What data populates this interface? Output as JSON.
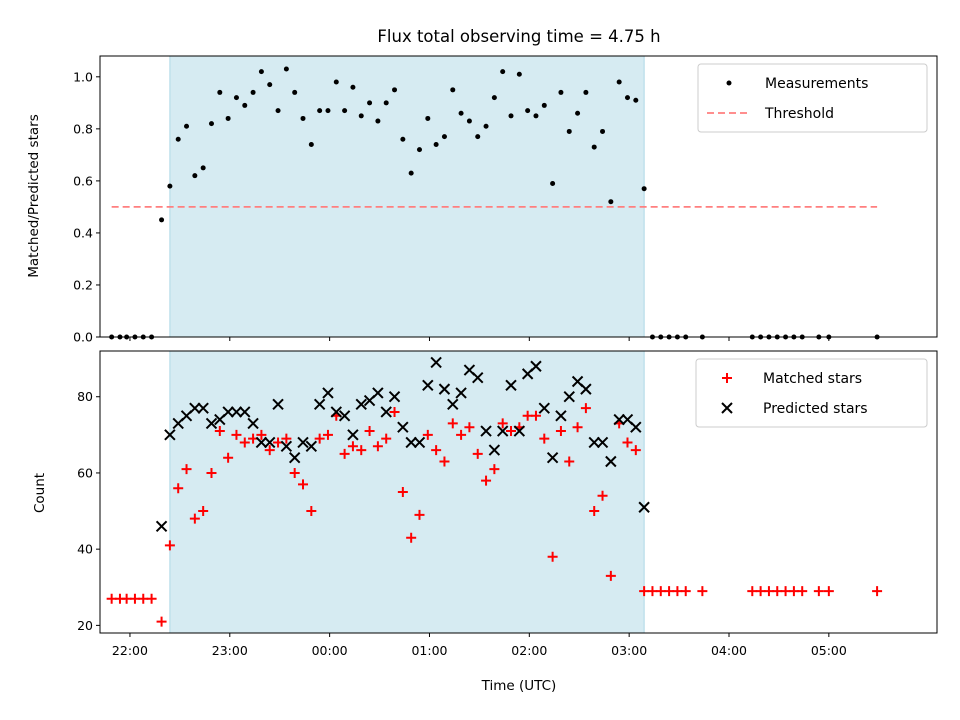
{
  "chart_data": {
    "title": "Flux total observing time = 4.75 h",
    "xlabel": "Time (UTC)",
    "x_ticks": [
      "22:00",
      "23:00",
      "00:00",
      "01:00",
      "02:00",
      "03:00",
      "04:00",
      "05:00"
    ],
    "x_range": [
      "21:42",
      "06:05"
    ],
    "shaded_window": [
      "22:24",
      "03:09"
    ],
    "shade_color": "#add8e6",
    "panels": [
      {
        "type": "scatter",
        "ylabel": "Matched/Predicted stars",
        "ylim": [
          0,
          1.08
        ],
        "y_ticks": [
          "0.0",
          "0.2",
          "0.4",
          "0.6",
          "0.8",
          "1.0"
        ],
        "legend_position": "upper right",
        "series": [
          {
            "name": "Measurements",
            "marker": "dot",
            "color": "#000000",
            "points": [
              [
                "21:49",
                0.0
              ],
              [
                "21:54",
                0.0
              ],
              [
                "21:58",
                0.0
              ],
              [
                "22:03",
                0.0
              ],
              [
                "22:08",
                0.0
              ],
              [
                "22:13",
                0.0
              ],
              [
                "22:19",
                0.45
              ],
              [
                "22:24",
                0.58
              ],
              [
                "22:29",
                0.76
              ],
              [
                "22:34",
                0.81
              ],
              [
                "22:39",
                0.62
              ],
              [
                "22:44",
                0.65
              ],
              [
                "22:49",
                0.82
              ],
              [
                "22:54",
                0.94
              ],
              [
                "22:59",
                0.84
              ],
              [
                "23:04",
                0.92
              ],
              [
                "23:09",
                0.89
              ],
              [
                "23:14",
                0.94
              ],
              [
                "23:19",
                1.02
              ],
              [
                "23:24",
                0.97
              ],
              [
                "23:29",
                0.87
              ],
              [
                "23:34",
                1.03
              ],
              [
                "23:39",
                0.94
              ],
              [
                "23:44",
                0.84
              ],
              [
                "23:49",
                0.74
              ],
              [
                "23:54",
                0.87
              ],
              [
                "23:59",
                0.87
              ],
              [
                "00:04",
                0.98
              ],
              [
                "00:09",
                0.87
              ],
              [
                "00:14",
                0.96
              ],
              [
                "00:19",
                0.85
              ],
              [
                "00:24",
                0.9
              ],
              [
                "00:29",
                0.83
              ],
              [
                "00:34",
                0.9
              ],
              [
                "00:39",
                0.95
              ],
              [
                "00:44",
                0.76
              ],
              [
                "00:49",
                0.63
              ],
              [
                "00:54",
                0.72
              ],
              [
                "00:59",
                0.84
              ],
              [
                "01:04",
                0.74
              ],
              [
                "01:09",
                0.77
              ],
              [
                "01:14",
                0.95
              ],
              [
                "01:19",
                0.86
              ],
              [
                "01:24",
                0.83
              ],
              [
                "01:29",
                0.77
              ],
              [
                "01:34",
                0.81
              ],
              [
                "01:39",
                0.92
              ],
              [
                "01:44",
                1.02
              ],
              [
                "01:49",
                0.85
              ],
              [
                "01:54",
                1.01
              ],
              [
                "01:59",
                0.87
              ],
              [
                "02:04",
                0.85
              ],
              [
                "02:09",
                0.89
              ],
              [
                "02:14",
                0.59
              ],
              [
                "02:19",
                0.94
              ],
              [
                "02:24",
                0.79
              ],
              [
                "02:29",
                0.86
              ],
              [
                "02:34",
                0.94
              ],
              [
                "02:39",
                0.73
              ],
              [
                "02:44",
                0.79
              ],
              [
                "02:49",
                0.52
              ],
              [
                "02:54",
                0.98
              ],
              [
                "02:59",
                0.92
              ],
              [
                "03:04",
                0.91
              ],
              [
                "03:09",
                0.57
              ],
              [
                "03:14",
                0.0
              ],
              [
                "03:19",
                0.0
              ],
              [
                "03:24",
                0.0
              ],
              [
                "03:29",
                0.0
              ],
              [
                "03:34",
                0.0
              ],
              [
                "03:44",
                0.0
              ],
              [
                "04:14",
                0.0
              ],
              [
                "04:19",
                0.0
              ],
              [
                "04:24",
                0.0
              ],
              [
                "04:29",
                0.0
              ],
              [
                "04:34",
                0.0
              ],
              [
                "04:39",
                0.0
              ],
              [
                "04:44",
                0.0
              ],
              [
                "04:54",
                0.0
              ],
              [
                "05:00",
                0.0
              ],
              [
                "05:29",
                0.0
              ]
            ]
          },
          {
            "name": "Threshold",
            "type": "line",
            "style": "dashed",
            "color": "#ff7f7f",
            "points": [
              [
                "21:49",
                0.5
              ],
              [
                "05:29",
                0.5
              ]
            ]
          }
        ]
      },
      {
        "type": "scatter",
        "ylabel": "Count",
        "ylim": [
          18,
          92
        ],
        "y_ticks": [
          "20",
          "40",
          "60",
          "80"
        ],
        "legend_position": "upper right",
        "series": [
          {
            "name": "Matched stars",
            "marker": "plus",
            "color": "#ff0000",
            "points": [
              [
                "21:49",
                27
              ],
              [
                "21:54",
                27
              ],
              [
                "21:58",
                27
              ],
              [
                "22:03",
                27
              ],
              [
                "22:08",
                27
              ],
              [
                "22:13",
                27
              ],
              [
                "22:19",
                21
              ],
              [
                "22:24",
                41
              ],
              [
                "22:29",
                56
              ],
              [
                "22:34",
                61
              ],
              [
                "22:39",
                48
              ],
              [
                "22:44",
                50
              ],
              [
                "22:49",
                60
              ],
              [
                "22:54",
                71
              ],
              [
                "22:59",
                64
              ],
              [
                "23:04",
                70
              ],
              [
                "23:09",
                68
              ],
              [
                "23:14",
                69
              ],
              [
                "23:19",
                70
              ],
              [
                "23:24",
                66
              ],
              [
                "23:29",
                68
              ],
              [
                "23:34",
                69
              ],
              [
                "23:39",
                60
              ],
              [
                "23:44",
                57
              ],
              [
                "23:49",
                50
              ],
              [
                "23:54",
                69
              ],
              [
                "23:59",
                70
              ],
              [
                "00:04",
                75
              ],
              [
                "00:09",
                65
              ],
              [
                "00:14",
                67
              ],
              [
                "00:19",
                66
              ],
              [
                "00:24",
                71
              ],
              [
                "00:29",
                67
              ],
              [
                "00:34",
                69
              ],
              [
                "00:39",
                76
              ],
              [
                "00:44",
                55
              ],
              [
                "00:49",
                43
              ],
              [
                "00:54",
                49
              ],
              [
                "00:59",
                70
              ],
              [
                "01:04",
                66
              ],
              [
                "01:09",
                63
              ],
              [
                "01:14",
                73
              ],
              [
                "01:19",
                70
              ],
              [
                "01:24",
                72
              ],
              [
                "01:29",
                65
              ],
              [
                "01:34",
                58
              ],
              [
                "01:39",
                61
              ],
              [
                "01:44",
                73
              ],
              [
                "01:49",
                71
              ],
              [
                "01:54",
                72
              ],
              [
                "01:59",
                75
              ],
              [
                "02:04",
                75
              ],
              [
                "02:09",
                69
              ],
              [
                "02:14",
                38
              ],
              [
                "02:19",
                71
              ],
              [
                "02:24",
                63
              ],
              [
                "02:29",
                72
              ],
              [
                "02:34",
                77
              ],
              [
                "02:39",
                50
              ],
              [
                "02:44",
                54
              ],
              [
                "02:49",
                33
              ],
              [
                "02:54",
                73
              ],
              [
                "02:59",
                68
              ],
              [
                "03:04",
                66
              ],
              [
                "03:09",
                29
              ],
              [
                "03:14",
                29
              ],
              [
                "03:19",
                29
              ],
              [
                "03:24",
                29
              ],
              [
                "03:29",
                29
              ],
              [
                "03:34",
                29
              ],
              [
                "03:44",
                29
              ],
              [
                "04:14",
                29
              ],
              [
                "04:19",
                29
              ],
              [
                "04:24",
                29
              ],
              [
                "04:29",
                29
              ],
              [
                "04:34",
                29
              ],
              [
                "04:39",
                29
              ],
              [
                "04:44",
                29
              ],
              [
                "04:54",
                29
              ],
              [
                "05:00",
                29
              ],
              [
                "05:29",
                29
              ]
            ]
          },
          {
            "name": "Predicted stars",
            "marker": "x",
            "color": "#000000",
            "points": [
              [
                "22:19",
                46
              ],
              [
                "22:24",
                70
              ],
              [
                "22:29",
                73
              ],
              [
                "22:34",
                75
              ],
              [
                "22:39",
                77
              ],
              [
                "22:44",
                77
              ],
              [
                "22:49",
                73
              ],
              [
                "22:54",
                74
              ],
              [
                "22:59",
                76
              ],
              [
                "23:04",
                76
              ],
              [
                "23:09",
                76
              ],
              [
                "23:14",
                73
              ],
              [
                "23:19",
                68
              ],
              [
                "23:24",
                68
              ],
              [
                "23:29",
                78
              ],
              [
                "23:34",
                67
              ],
              [
                "23:39",
                64
              ],
              [
                "23:44",
                68
              ],
              [
                "23:49",
                67
              ],
              [
                "23:54",
                78
              ],
              [
                "23:59",
                81
              ],
              [
                "00:04",
                76
              ],
              [
                "00:09",
                75
              ],
              [
                "00:14",
                70
              ],
              [
                "00:19",
                78
              ],
              [
                "00:24",
                79
              ],
              [
                "00:29",
                81
              ],
              [
                "00:34",
                76
              ],
              [
                "00:39",
                80
              ],
              [
                "00:44",
                72
              ],
              [
                "00:49",
                68
              ],
              [
                "00:54",
                68
              ],
              [
                "00:59",
                83
              ],
              [
                "01:04",
                89
              ],
              [
                "01:09",
                82
              ],
              [
                "01:14",
                78
              ],
              [
                "01:19",
                81
              ],
              [
                "01:24",
                87
              ],
              [
                "01:29",
                85
              ],
              [
                "01:34",
                71
              ],
              [
                "01:39",
                66
              ],
              [
                "01:44",
                71
              ],
              [
                "01:49",
                83
              ],
              [
                "01:54",
                71
              ],
              [
                "01:59",
                86
              ],
              [
                "02:04",
                88
              ],
              [
                "02:09",
                77
              ],
              [
                "02:14",
                64
              ],
              [
                "02:19",
                75
              ],
              [
                "02:24",
                80
              ],
              [
                "02:29",
                84
              ],
              [
                "02:34",
                82
              ],
              [
                "02:39",
                68
              ],
              [
                "02:44",
                68
              ],
              [
                "02:49",
                63
              ],
              [
                "02:54",
                74
              ],
              [
                "02:59",
                74
              ],
              [
                "03:04",
                72
              ],
              [
                "03:09",
                51
              ]
            ]
          }
        ]
      }
    ]
  }
}
